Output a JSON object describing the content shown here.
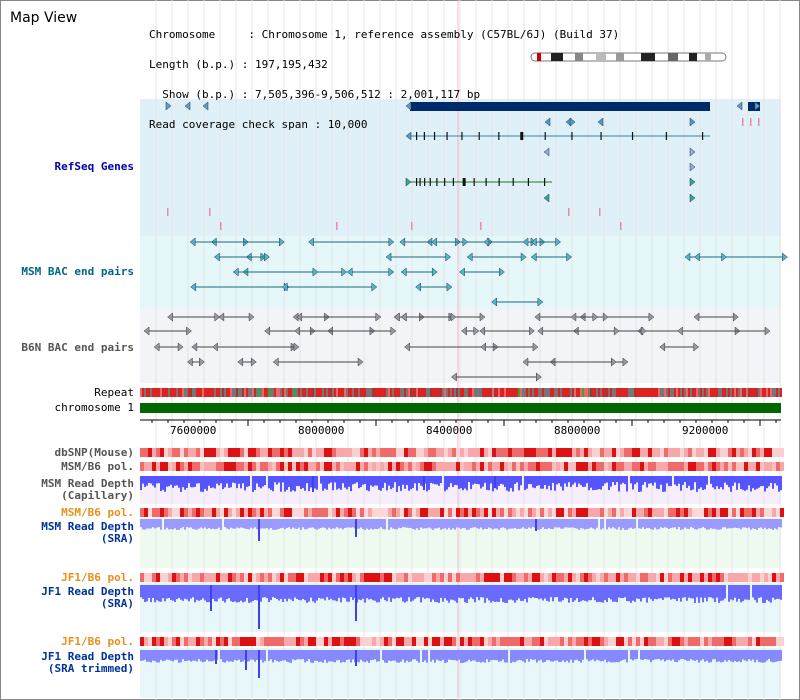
{
  "app": {
    "title": "Map View"
  },
  "header": {
    "line1": "Chromosome     : Chromosome 1, reference assembly (C57BL/6J) (Build 37)",
    "line2": "Length (b.p.) : 197,195,432",
    "line3": "  Show (b.p.) : 7,505,396-9,506,512 : 2,001,117 bp",
    "line4": "Read coverage check span : 10,000"
  },
  "tracks": {
    "refseq": "RefSeq Genes",
    "msm_bac": "MSM BAC end pairs",
    "b6n_bac": "B6N BAC end pairs",
    "repeat": "Repeat",
    "chromosome": "chromosome 1",
    "dbsnp": "dbSNP(Mouse)",
    "msm_b6_pol_1": "MSM/B6 pol.",
    "msm_read_depth_cap_1": "MSM Read Depth",
    "msm_read_depth_cap_2": "(Capillary)",
    "msm_b6_pol_2": "MSM/B6 pol.",
    "msm_read_depth_sra_1": "MSM Read Depth",
    "msm_read_depth_sra_2": "(SRA)",
    "jf1_b6_pol_1": "JF1/B6 pol.",
    "jf1_read_depth_sra_1": "JF1 Read Depth",
    "jf1_read_depth_sra_2": "(SRA)",
    "jf1_b6_pol_2": "JF1/B6 pol.",
    "jf1_read_depth_trim_1": "JF1 Read Depth",
    "jf1_read_depth_trim_2": "(SRA trimmed)"
  },
  "axis": {
    "ticks": [
      "7600000",
      "8000000",
      "8400000",
      "8800000",
      "9200000"
    ]
  },
  "colors": {
    "refseq_bg": "#dff0f8",
    "msm_bg": "#e6f7fa",
    "b6n_bg": "#f2f4f8",
    "gene_dark": "#002b6b",
    "chromosome_green": "#006600",
    "teal_gene": "#2a8aa0",
    "depth_blue": "#6a6aff",
    "pol_red": "#ee3333"
  }
}
